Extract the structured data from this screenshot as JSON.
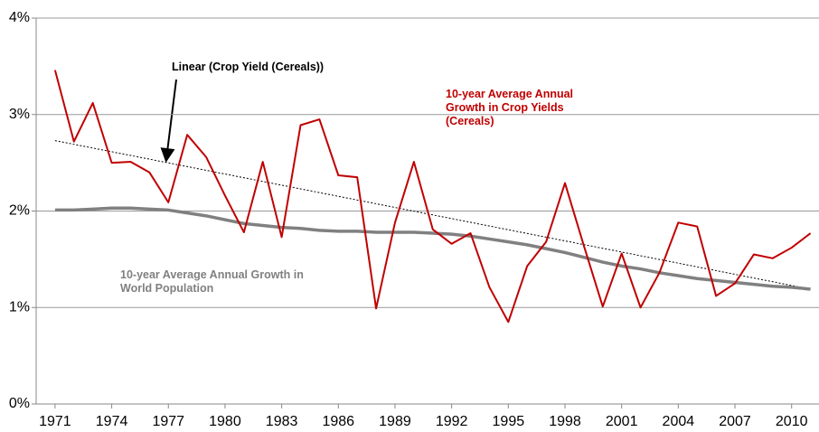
{
  "chart_data": {
    "type": "line",
    "x": [
      1971,
      1972,
      1973,
      1974,
      1975,
      1976,
      1977,
      1978,
      1979,
      1980,
      1981,
      1982,
      1983,
      1984,
      1985,
      1986,
      1987,
      1988,
      1989,
      1990,
      1991,
      1992,
      1993,
      1994,
      1995,
      1996,
      1997,
      1998,
      1999,
      2000,
      2001,
      2002,
      2003,
      2004,
      2005,
      2006,
      2007,
      2008,
      2009,
      2010,
      2011
    ],
    "series": [
      {
        "name": "10-year Average Annual Growth in Crop Yields (Cereals)",
        "color": "#c00000",
        "values": [
          3.46,
          2.72,
          3.12,
          2.5,
          2.51,
          2.4,
          2.09,
          2.79,
          2.56,
          2.16,
          1.78,
          2.51,
          1.73,
          2.89,
          2.95,
          2.37,
          2.35,
          0.99,
          1.88,
          2.51,
          1.81,
          1.66,
          1.77,
          1.21,
          0.85,
          1.43,
          1.68,
          2.29,
          1.64,
          1.01,
          1.56,
          1.0,
          1.36,
          1.88,
          1.84,
          1.12,
          1.25,
          1.55,
          1.51,
          1.62,
          1.77
        ]
      },
      {
        "name": "10-year Average Annual Growth in World Population",
        "color": "#808080",
        "values": [
          2.01,
          2.01,
          2.02,
          2.03,
          2.03,
          2.02,
          2.01,
          1.98,
          1.95,
          1.91,
          1.87,
          1.85,
          1.83,
          1.82,
          1.8,
          1.79,
          1.79,
          1.78,
          1.78,
          1.78,
          1.77,
          1.76,
          1.74,
          1.71,
          1.68,
          1.65,
          1.61,
          1.57,
          1.52,
          1.47,
          1.43,
          1.4,
          1.36,
          1.33,
          1.3,
          1.28,
          1.26,
          1.24,
          1.22,
          1.21,
          1.19
        ]
      }
    ],
    "trendline": {
      "name": "Linear (Crop Yield (Cereals))",
      "color": "#000000",
      "x": [
        1971,
        2011
      ],
      "values": [
        2.73,
        1.19
      ]
    },
    "xlim": [
      1970,
      2011.45
    ],
    "xticks": [
      1971,
      1974,
      1977,
      1980,
      1983,
      1986,
      1989,
      1992,
      1995,
      1998,
      2001,
      2004,
      2007,
      2010
    ],
    "ylim": [
      0,
      4
    ],
    "yticks": [
      {
        "value": 0,
        "label": "0%"
      },
      {
        "value": 1,
        "label": "1%"
      },
      {
        "value": 2,
        "label": "2%"
      },
      {
        "value": 3,
        "label": "3%"
      },
      {
        "value": 4,
        "label": "4%"
      }
    ],
    "grid": true
  }
}
